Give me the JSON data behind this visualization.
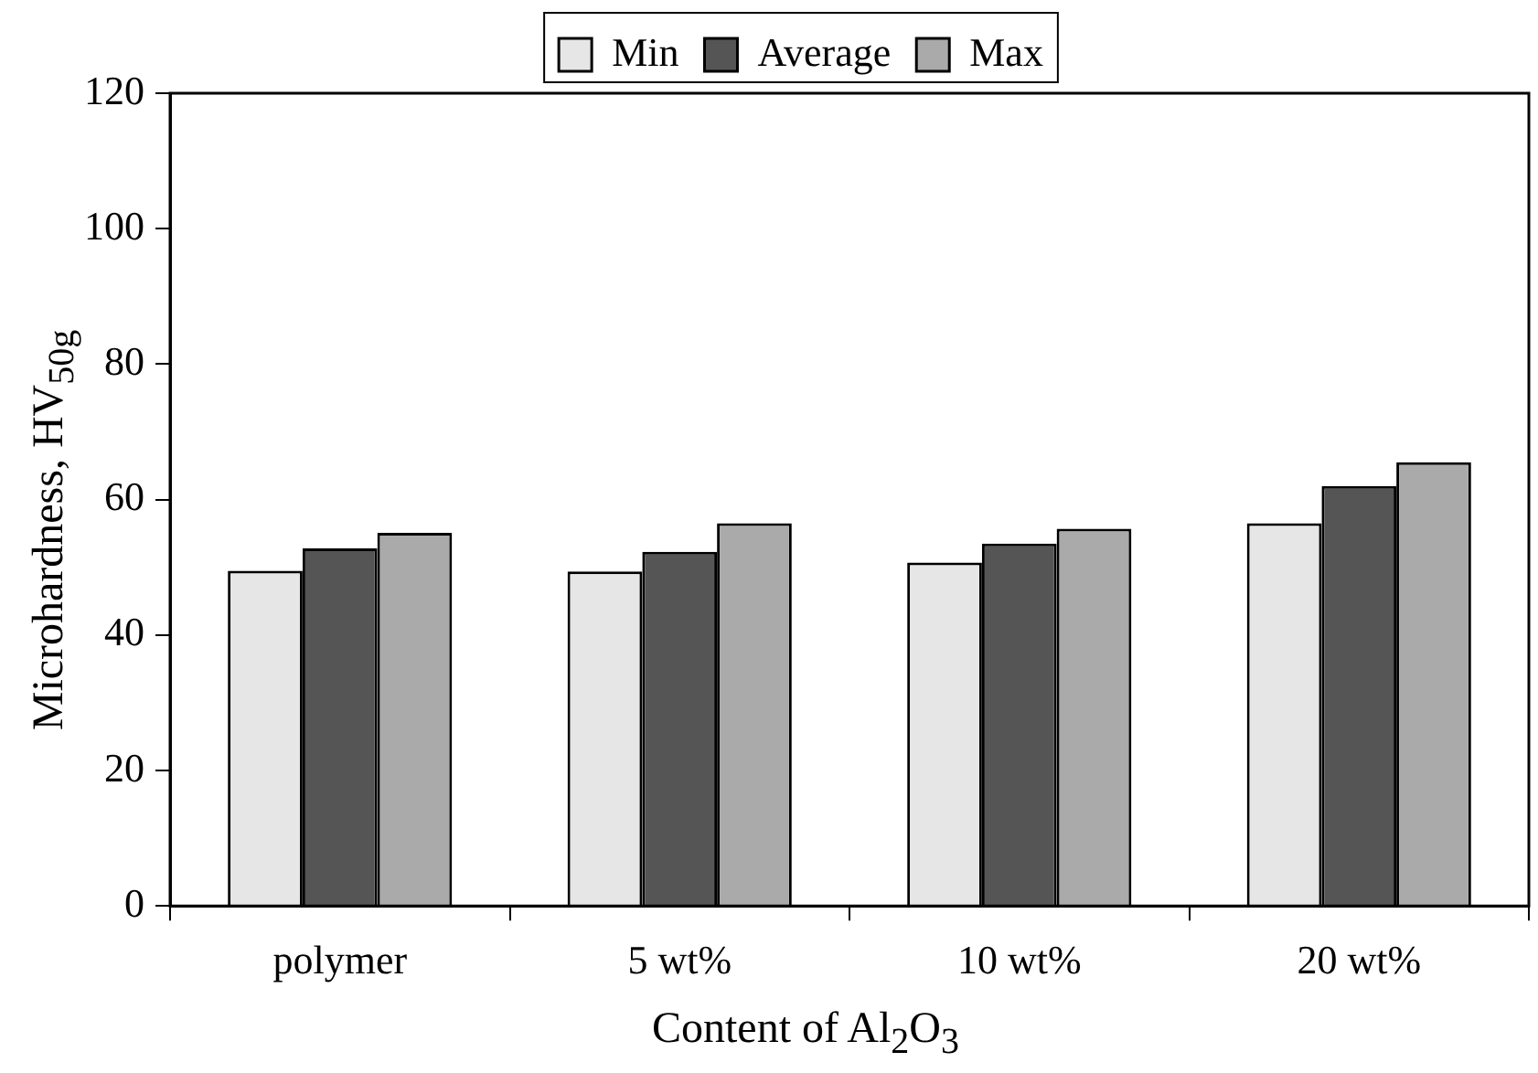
{
  "chart_data": {
    "type": "bar",
    "xlabel": "Content of Al$_{2}$O$_{3}$",
    "ylabel": "Microhardness, HV$_{50g}$",
    "categories": [
      "polymer",
      "5 wt%",
      "10 wt%",
      "20 wt%"
    ],
    "series": [
      {
        "name": "Min",
        "color": "#e6e6e6",
        "values": [
          49.5,
          49.4,
          50.7,
          56.5
        ]
      },
      {
        "name": "Average",
        "color": "#555555",
        "values": [
          52.8,
          52.3,
          53.5,
          62
        ]
      },
      {
        "name": "Max",
        "color": "#aaaaaa",
        "values": [
          55.1,
          56.5,
          55.7,
          65.5
        ]
      }
    ],
    "ylim": [
      0,
      120
    ],
    "yticks": [
      0,
      20,
      40,
      60,
      80,
      100,
      120
    ],
    "grid": false,
    "legend": "top"
  }
}
